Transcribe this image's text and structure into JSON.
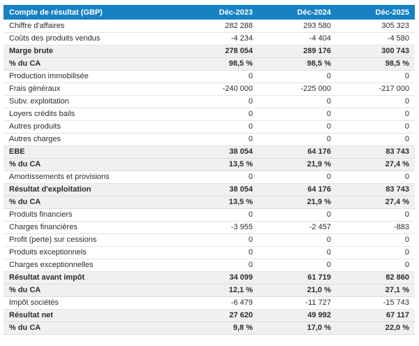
{
  "table": {
    "title_header": "Compte de résultat (GBP)",
    "columns": [
      "Déc-2023",
      "Déc-2024",
      "Déc-2025"
    ],
    "rows": [
      {
        "label": "Chiffre d'affaires",
        "values": [
          "282 288",
          "293 580",
          "305 323"
        ],
        "style": "normal"
      },
      {
        "label": "Coûts des produits vendus",
        "values": [
          "-4 234",
          "-4 404",
          "-4 580"
        ],
        "style": "normal"
      },
      {
        "label": "Marge brute",
        "values": [
          "278 054",
          "289 176",
          "300 743"
        ],
        "style": "total"
      },
      {
        "label": "% du CA",
        "values": [
          "98,5 %",
          "98,5 %",
          "98,5 %"
        ],
        "style": "total"
      },
      {
        "label": "Production immobilisée",
        "values": [
          "0",
          "0",
          "0"
        ],
        "style": "normal"
      },
      {
        "label": "Frais généraux",
        "values": [
          "-240 000",
          "-225 000",
          "-217 000"
        ],
        "style": "normal"
      },
      {
        "label": "Subv. exploitation",
        "values": [
          "0",
          "0",
          "0"
        ],
        "style": "normal"
      },
      {
        "label": "Loyers crédits bails",
        "values": [
          "0",
          "0",
          "0"
        ],
        "style": "normal"
      },
      {
        "label": "Autres produits",
        "values": [
          "0",
          "0",
          "0"
        ],
        "style": "normal"
      },
      {
        "label": "Autres charges",
        "values": [
          "0",
          "0",
          "0"
        ],
        "style": "normal"
      },
      {
        "label": "EBE",
        "values": [
          "38 054",
          "64 176",
          "83 743"
        ],
        "style": "total"
      },
      {
        "label": "% du CA",
        "values": [
          "13,5 %",
          "21,9 %",
          "27,4 %"
        ],
        "style": "total"
      },
      {
        "label": "Amortissements et provisions",
        "values": [
          "0",
          "0",
          "0"
        ],
        "style": "normal"
      },
      {
        "label": "Résultat d'exploitation",
        "values": [
          "38 054",
          "64 176",
          "83 743"
        ],
        "style": "total"
      },
      {
        "label": "% du CA",
        "values": [
          "13,5 %",
          "21,9 %",
          "27,4 %"
        ],
        "style": "total"
      },
      {
        "label": "Produits financiers",
        "values": [
          "0",
          "0",
          "0"
        ],
        "style": "normal"
      },
      {
        "label": "Charges financières",
        "values": [
          "-3 955",
          "-2 457",
          "-883"
        ],
        "style": "normal"
      },
      {
        "label": "Profit (perte) sur cessions",
        "values": [
          "0",
          "0",
          "0"
        ],
        "style": "normal"
      },
      {
        "label": "Produits exceptionnels",
        "values": [
          "0",
          "0",
          "0"
        ],
        "style": "normal"
      },
      {
        "label": "Charges exceptionnelles",
        "values": [
          "0",
          "0",
          "0"
        ],
        "style": "normal"
      },
      {
        "label": "Résultat avant impôt",
        "values": [
          "34 099",
          "61 719",
          "82 860"
        ],
        "style": "total"
      },
      {
        "label": "% du CA",
        "values": [
          "12,1 %",
          "21,0 %",
          "27,1 %"
        ],
        "style": "total"
      },
      {
        "label": "Impôt sociétés",
        "values": [
          "-6 479",
          "-11 727",
          "-15 743"
        ],
        "style": "normal"
      },
      {
        "label": "Résultat net",
        "values": [
          "27 620",
          "49 992",
          "67 117"
        ],
        "style": "total"
      },
      {
        "label": "% du CA",
        "values": [
          "9,8 %",
          "17,0 %",
          "22,0 %"
        ],
        "style": "total"
      }
    ]
  },
  "colors": {
    "header_bg": "#1681c3",
    "header_text": "#ffffff",
    "total_row_bg": "#f0f0f0",
    "row_border": "#e4e4e4",
    "body_text": "#2b2b2b"
  },
  "chart_data": {
    "type": "table",
    "title": "Compte de résultat (GBP)",
    "columns": [
      "Déc-2023",
      "Déc-2024",
      "Déc-2025"
    ],
    "rows": [
      {
        "label": "Chiffre d'affaires",
        "values": [
          282288,
          293580,
          305323
        ]
      },
      {
        "label": "Coûts des produits vendus",
        "values": [
          -4234,
          -4404,
          -4580
        ]
      },
      {
        "label": "Marge brute",
        "values": [
          278054,
          289176,
          300743
        ]
      },
      {
        "label": "% du CA (marge brute)",
        "values": [
          98.5,
          98.5,
          98.5
        ],
        "unit": "%"
      },
      {
        "label": "Production immobilisée",
        "values": [
          0,
          0,
          0
        ]
      },
      {
        "label": "Frais généraux",
        "values": [
          -240000,
          -225000,
          -217000
        ]
      },
      {
        "label": "Subv. exploitation",
        "values": [
          0,
          0,
          0
        ]
      },
      {
        "label": "Loyers crédits bails",
        "values": [
          0,
          0,
          0
        ]
      },
      {
        "label": "Autres produits",
        "values": [
          0,
          0,
          0
        ]
      },
      {
        "label": "Autres charges",
        "values": [
          0,
          0,
          0
        ]
      },
      {
        "label": "EBE",
        "values": [
          38054,
          64176,
          83743
        ]
      },
      {
        "label": "% du CA (EBE)",
        "values": [
          13.5,
          21.9,
          27.4
        ],
        "unit": "%"
      },
      {
        "label": "Amortissements et provisions",
        "values": [
          0,
          0,
          0
        ]
      },
      {
        "label": "Résultat d'exploitation",
        "values": [
          38054,
          64176,
          83743
        ]
      },
      {
        "label": "% du CA (résultat d'exploitation)",
        "values": [
          13.5,
          21.9,
          27.4
        ],
        "unit": "%"
      },
      {
        "label": "Produits financiers",
        "values": [
          0,
          0,
          0
        ]
      },
      {
        "label": "Charges financières",
        "values": [
          -3955,
          -2457,
          -883
        ]
      },
      {
        "label": "Profit (perte) sur cessions",
        "values": [
          0,
          0,
          0
        ]
      },
      {
        "label": "Produits exceptionnels",
        "values": [
          0,
          0,
          0
        ]
      },
      {
        "label": "Charges exceptionnelles",
        "values": [
          0,
          0,
          0
        ]
      },
      {
        "label": "Résultat avant impôt",
        "values": [
          34099,
          61719,
          82860
        ]
      },
      {
        "label": "% du CA (résultat avant impôt)",
        "values": [
          12.1,
          21.0,
          27.1
        ],
        "unit": "%"
      },
      {
        "label": "Impôt sociétés",
        "values": [
          -6479,
          -11727,
          -15743
        ]
      },
      {
        "label": "Résultat net",
        "values": [
          27620,
          49992,
          67117
        ]
      },
      {
        "label": "% du CA (résultat net)",
        "values": [
          9.8,
          17.0,
          22.0
        ],
        "unit": "%"
      }
    ]
  }
}
